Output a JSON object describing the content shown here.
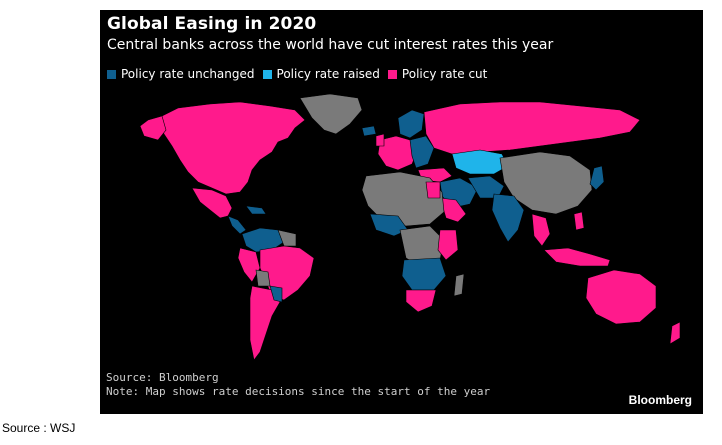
{
  "header": {
    "title": "Global Easing in 2020",
    "subtitle": "Central banks across the world have cut interest rates this year"
  },
  "legend": {
    "items": [
      {
        "label": "Policy rate unchanged",
        "color": "#0f5f8f"
      },
      {
        "label": "Policy rate raised",
        "color": "#1fb4ea"
      },
      {
        "label": "Policy rate cut",
        "color": "#ff1a8c"
      }
    ]
  },
  "map": {
    "background": "#000000",
    "no_data_color": "#7a7a7a"
  },
  "footer": {
    "source": "Source: Bloomberg",
    "note": "Note: Map shows rate decisions since the start of the year",
    "brand": "Bloomberg"
  },
  "outer_caption": "Source : WSJ"
}
